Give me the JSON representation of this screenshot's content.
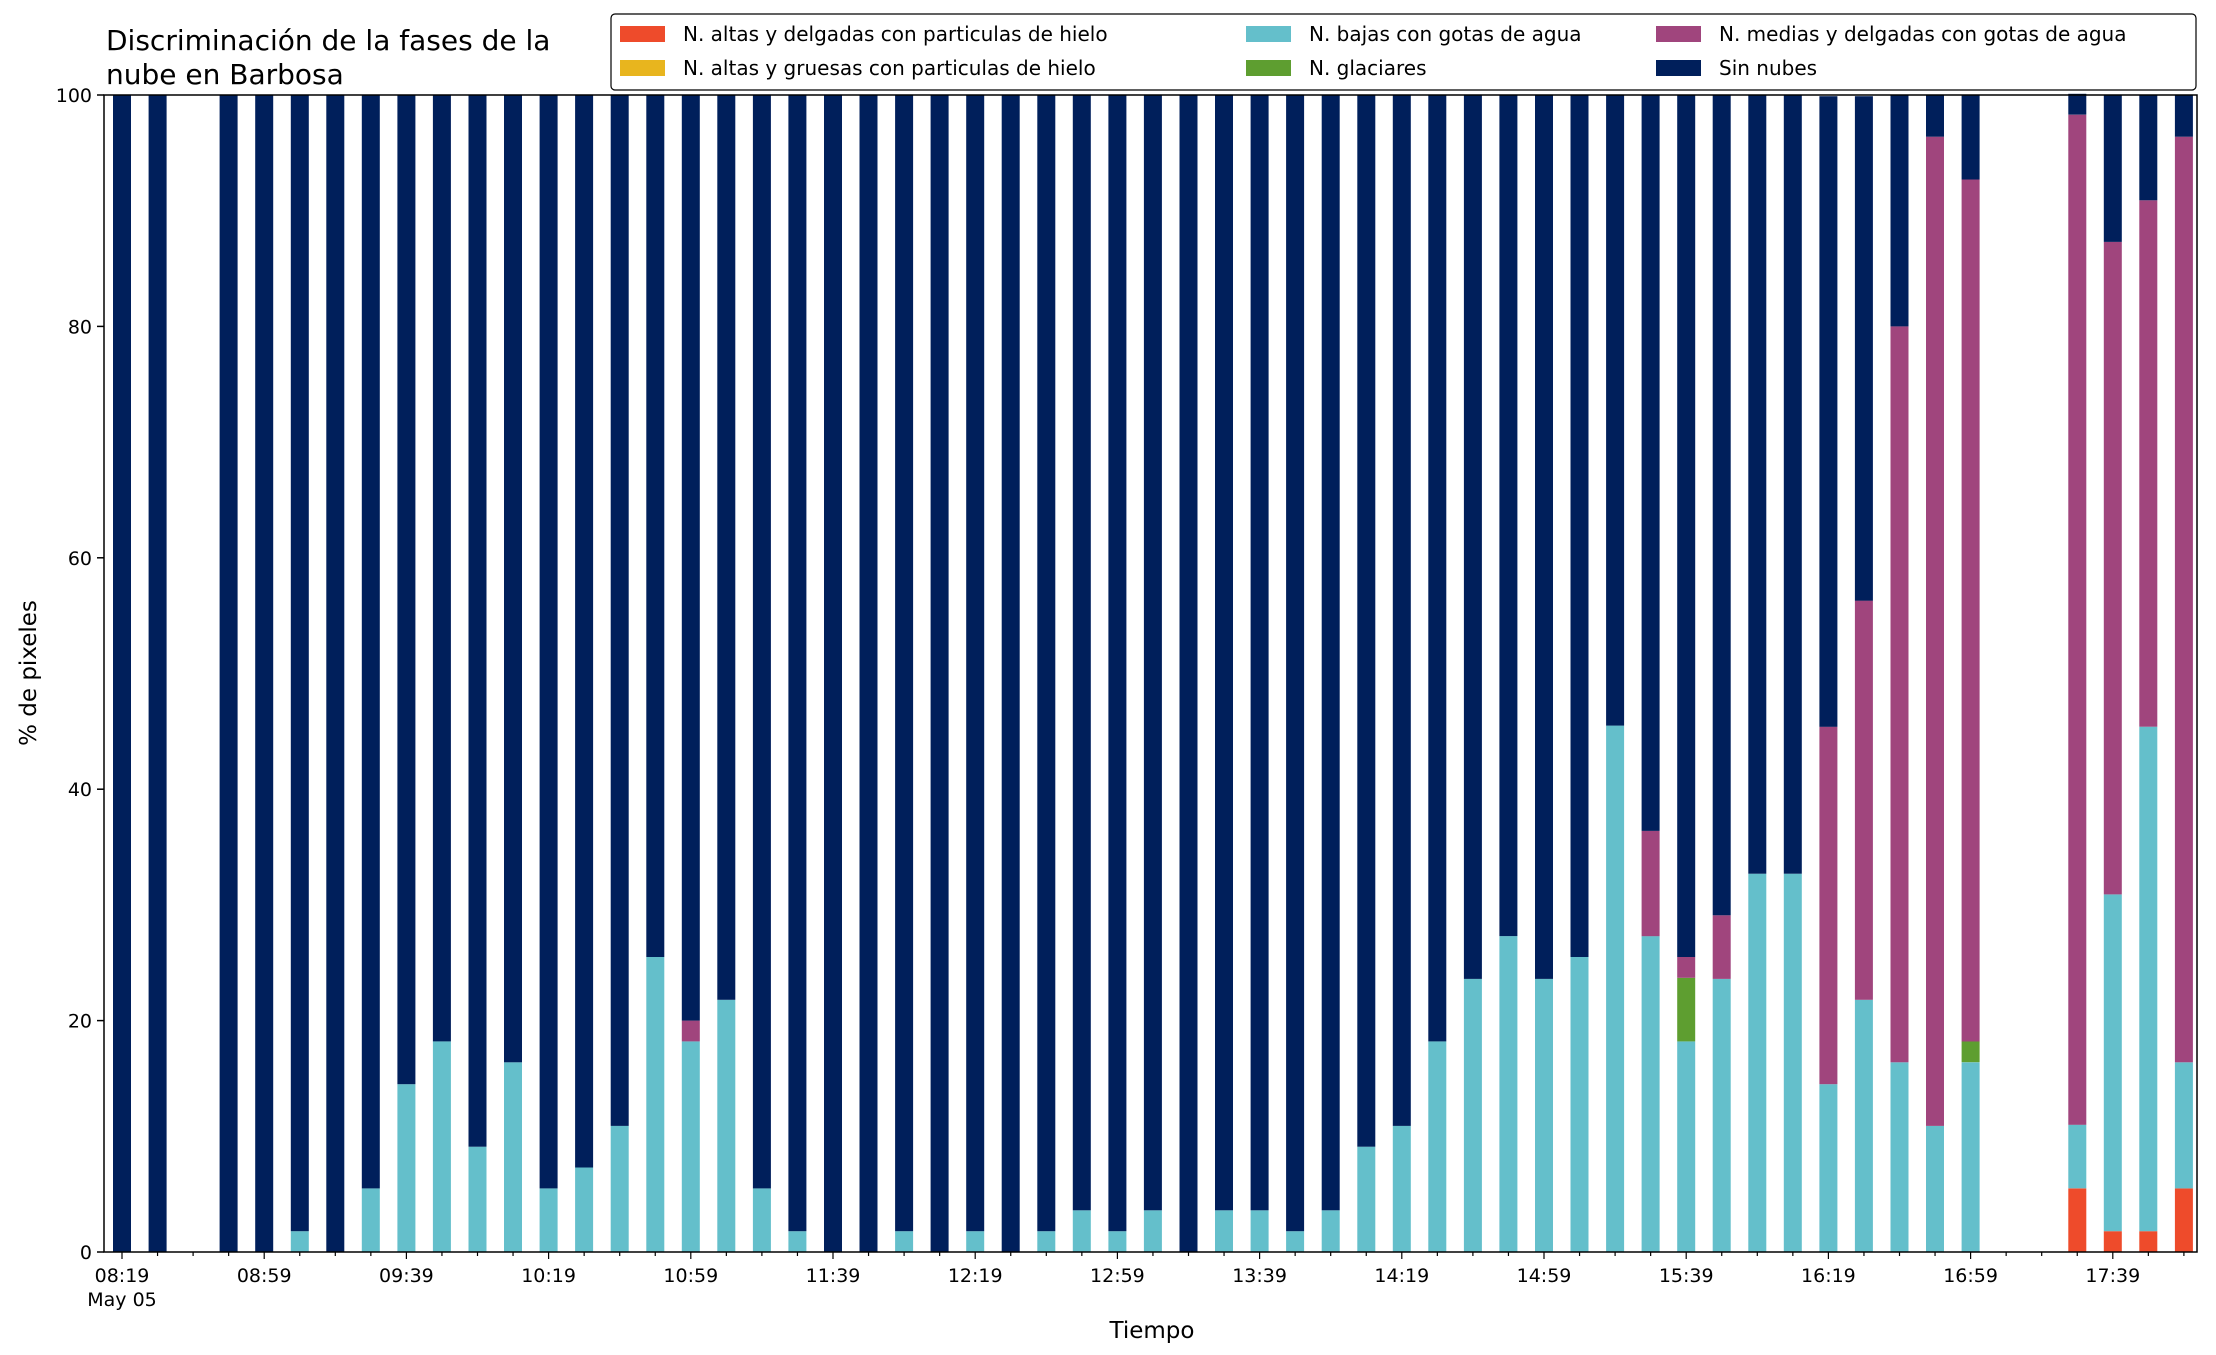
{
  "chart_data": {
    "type": "bar",
    "stacked": true,
    "title": "Discriminación de la fases de la\nnube en Barbosa",
    "xlabel": "Tiempo",
    "ylabel": "% de pixeles",
    "ylim": [
      0,
      100
    ],
    "yticks": [
      "0",
      "20",
      "40",
      "60",
      "80",
      "100"
    ],
    "xtick_labels": [
      "08:19\nMay 05",
      "08:59",
      "09:39",
      "10:19",
      "10:59",
      "11:39",
      "12:19",
      "12:59",
      "13:39",
      "14:19",
      "14:59",
      "15:39",
      "16:19",
      "16:59",
      "17:39"
    ],
    "grid": false,
    "legend_position": "top-right",
    "bar_slots": 59,
    "series": [
      {
        "name": "N. altas y delgadas con particulas de hielo",
        "color": "#ee4b2b",
        "values": [
          0,
          0,
          0,
          0,
          0,
          0,
          0,
          0,
          0,
          0,
          0,
          0,
          0,
          0,
          0,
          0,
          0,
          0,
          0,
          0,
          0,
          0,
          0,
          0,
          0,
          0,
          0,
          0,
          0,
          0,
          0,
          0,
          0,
          0,
          0,
          0,
          0,
          0,
          0,
          0,
          0,
          0,
          0,
          0,
          0,
          0,
          0,
          0,
          0,
          0,
          0,
          0,
          0,
          0,
          0,
          5.5,
          1.8,
          1.8,
          5.5
        ]
      },
      {
        "name": "N. altas y gruesas con particulas de hielo",
        "color": "#e8b51e",
        "values": [
          0,
          0,
          0,
          0,
          0,
          0,
          0,
          0,
          0,
          0,
          0,
          0,
          0,
          0,
          0,
          0,
          0,
          0,
          0,
          0,
          0,
          0,
          0,
          0,
          0,
          0,
          0,
          0,
          0,
          0,
          0,
          0,
          0,
          0,
          0,
          0,
          0,
          0,
          0,
          0,
          0,
          0,
          0,
          0,
          0,
          0,
          0,
          0,
          0,
          0,
          0,
          0,
          0,
          0,
          0,
          0,
          0,
          0,
          0
        ]
      },
      {
        "name": "N. bajas con gotas de agua",
        "color": "#64bfcb",
        "values": [
          0,
          0,
          0,
          0,
          0,
          1.8,
          0,
          5.5,
          14.5,
          18.2,
          9.1,
          16.4,
          5.5,
          7.3,
          10.9,
          25.5,
          18.2,
          21.8,
          5.5,
          1.8,
          0,
          0,
          1.8,
          0,
          1.8,
          0,
          1.8,
          3.6,
          1.8,
          3.6,
          0,
          3.6,
          3.6,
          1.8,
          3.6,
          9.1,
          10.9,
          18.2,
          23.6,
          27.3,
          23.6,
          25.5,
          45.5,
          27.3,
          18.2,
          23.6,
          32.7,
          32.7,
          14.5,
          21.8,
          16.4,
          10.9,
          16.4,
          0,
          0,
          5.5,
          29.1,
          43.6,
          10.9
        ]
      },
      {
        "name": "N. glaciares",
        "color": "#5e9e30",
        "values": [
          0,
          0,
          0,
          0,
          0,
          0,
          0,
          0,
          0,
          0,
          0,
          0,
          0,
          0,
          0,
          0,
          0,
          0,
          0,
          0,
          0,
          0,
          0,
          0,
          0,
          0,
          0,
          0,
          0,
          0,
          0,
          0,
          0,
          0,
          0,
          0,
          0,
          0,
          0,
          0,
          0,
          0,
          0,
          0,
          5.5,
          0,
          0,
          0,
          0,
          0,
          0,
          0,
          1.8,
          0,
          0,
          0,
          0,
          0,
          0
        ]
      },
      {
        "name": "N. medias y delgadas con gotas de agua",
        "color": "#a0457d",
        "values": [
          0,
          0,
          0,
          0,
          0,
          0,
          0,
          0,
          0,
          0,
          0,
          0,
          0,
          0,
          0,
          0,
          1.8,
          0,
          0,
          0,
          0,
          0,
          0,
          0,
          0,
          0,
          0,
          0,
          0,
          0,
          0,
          0,
          0,
          0,
          0,
          0,
          0,
          0,
          0,
          0,
          0,
          0,
          0,
          9.1,
          1.8,
          5.5,
          0,
          0,
          30.9,
          34.5,
          63.6,
          85.5,
          74.5,
          0,
          0,
          87.3,
          56.4,
          45.5,
          80.0
        ]
      },
      {
        "name": "Sin nubes",
        "color": "#001f5b",
        "values": [
          100,
          100,
          0,
          100,
          100,
          98.2,
          100,
          94.5,
          85.5,
          81.8,
          90.9,
          83.6,
          94.5,
          92.7,
          89.1,
          74.5,
          80.0,
          78.2,
          94.5,
          98.2,
          100,
          100,
          98.2,
          100,
          98.2,
          100,
          98.2,
          96.4,
          98.2,
          96.4,
          100,
          96.4,
          96.4,
          98.2,
          96.4,
          90.9,
          89.1,
          81.8,
          76.4,
          72.7,
          76.4,
          74.5,
          54.5,
          63.6,
          74.5,
          70.9,
          67.3,
          67.3,
          54.5,
          43.6,
          20.0,
          3.6,
          7.3,
          0,
          0,
          1.8,
          12.7,
          9.1,
          3.6
        ]
      }
    ]
  }
}
